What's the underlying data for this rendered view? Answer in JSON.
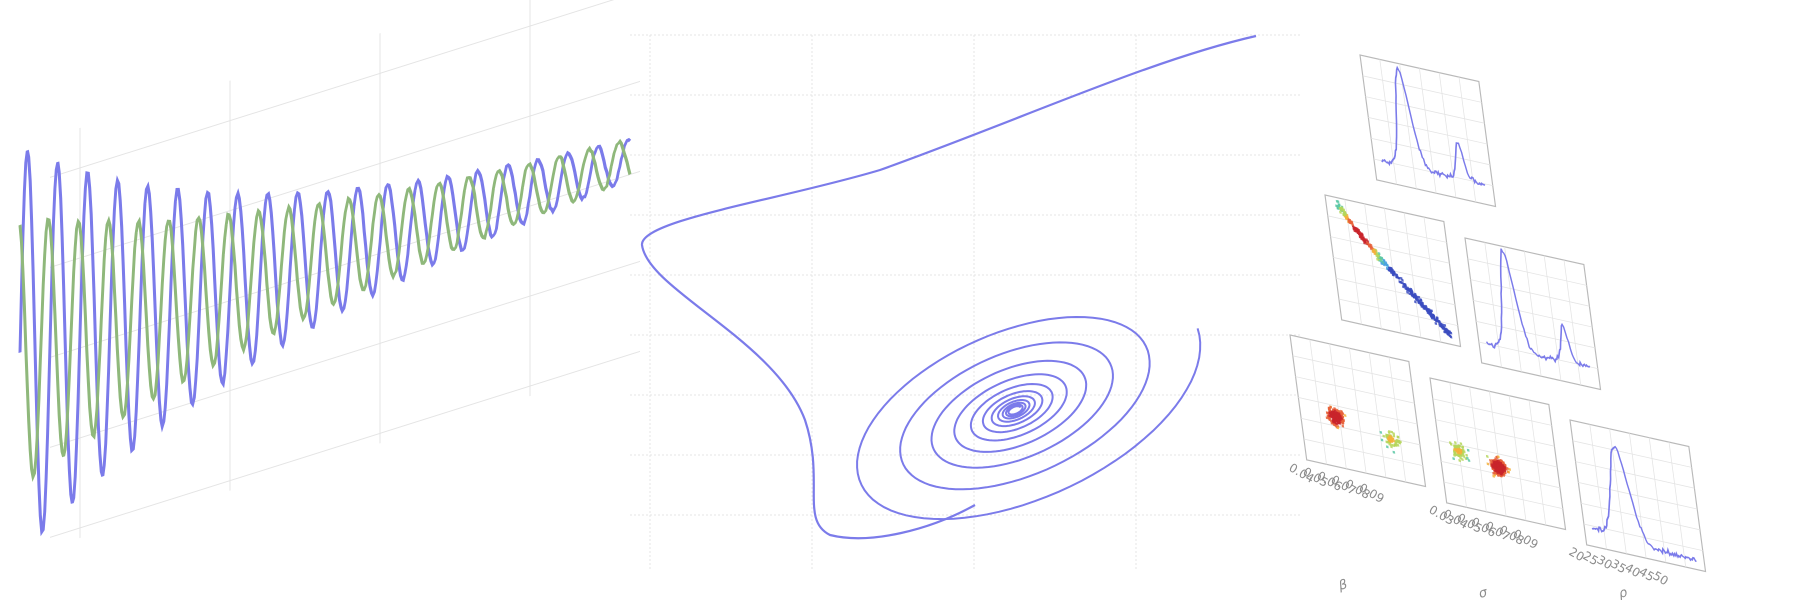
{
  "colors": {
    "blue": "#7b7bea",
    "green": "#8fb87b",
    "grid": "#e4e4e4",
    "panel_border": "#b9b9b9",
    "tick_text": "#8c8c8c"
  },
  "chart_data": [
    {
      "type": "line",
      "description_of_content": "damped oscillations, two series",
      "grid": true,
      "legend": "none",
      "x": {
        "range": [
          0,
          26
        ],
        "period": 1.28,
        "points": 420
      },
      "series": [
        {
          "color": "#7b7bea",
          "amplitude_start": 1.0,
          "amplitude_end": 0.1,
          "phase": 0.0,
          "noise": 0.015
        },
        {
          "color": "#8fb87b",
          "amplitude_start": 0.66,
          "amplitude_end": 0.1,
          "phase": 1.9,
          "noise": 0.015
        }
      ]
    },
    {
      "type": "line",
      "grid": true,
      "legend": "none",
      "series": [
        {
          "color": "#7b7bea",
          "kind": "spiral-trajectory",
          "turns": 11
        }
      ]
    },
    {
      "type": "heatmap",
      "subtype": "corner-plot",
      "grid": true,
      "parameters": [
        "β",
        "σ",
        "ρ"
      ],
      "tick_labels": [
        [
          "0.04",
          "0.05",
          "0.06",
          "0.07",
          "0.08",
          "0.09"
        ],
        [
          "0.03",
          "0.04",
          "0.05",
          "0.06",
          "0.07",
          "0.08",
          "0.09"
        ],
        [
          "20",
          "25",
          "30",
          "35",
          "40",
          "45",
          "50"
        ]
      ],
      "histograms": [
        {
          "param": "β",
          "shape": "bimodal"
        },
        {
          "param": "σ",
          "shape": "bimodal"
        },
        {
          "param": "ρ",
          "shape": "right-skewed"
        }
      ],
      "scatter_pairs": [
        {
          "x": "β",
          "y": "σ",
          "shape": "anti-correlated"
        },
        {
          "x": "β",
          "y": "ρ",
          "shape": "two-clusters"
        },
        {
          "x": "σ",
          "y": "ρ",
          "shape": "two-clusters"
        }
      ]
    }
  ]
}
